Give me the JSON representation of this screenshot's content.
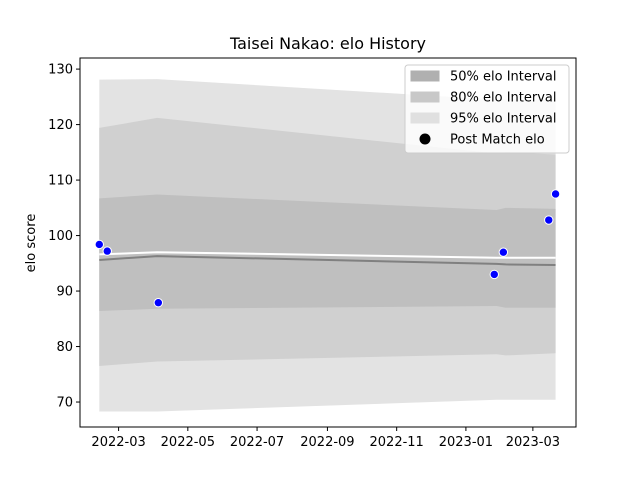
{
  "chart_data": {
    "type": "area",
    "title": "Taisei Nakao: elo History",
    "xlabel": "",
    "ylabel": "elo score",
    "xlim": [
      "2022-01-26",
      "2023-04-08"
    ],
    "ylim": [
      65.5,
      132.0
    ],
    "x_ticks": [
      "2022-03",
      "2022-05",
      "2022-07",
      "2022-09",
      "2022-11",
      "2023-01",
      "2023-03"
    ],
    "x_tick_dates": [
      "2022-03-01",
      "2022-05-01",
      "2022-07-01",
      "2022-09-01",
      "2022-11-01",
      "2023-01-01",
      "2023-03-01"
    ],
    "y_ticks": [
      70,
      80,
      90,
      100,
      110,
      120,
      130
    ],
    "grid": false,
    "legend_position": "top-right",
    "band_dates": [
      "2022-02-12",
      "2022-04-04",
      "2023-01-28",
      "2023-02-05",
      "2023-03-21"
    ],
    "series": [
      {
        "name": "95% elo Interval",
        "kind": "band",
        "color": "#e3e3e3",
        "lower": [
          68.3,
          68.3,
          70.4,
          70.4,
          70.4
        ],
        "upper": [
          128.1,
          128.2,
          124.5,
          124.5,
          124.5
        ]
      },
      {
        "name": "80% elo Interval",
        "kind": "band",
        "color": "#d0d0d0",
        "lower": [
          76.5,
          77.3,
          78.6,
          78.4,
          78.8
        ],
        "upper": [
          119.4,
          121.2,
          114.8,
          115.0,
          114.6
        ]
      },
      {
        "name": "50% elo Interval",
        "kind": "band",
        "color": "#bfbfbf",
        "lower": [
          86.4,
          86.8,
          87.3,
          87.0,
          87.0
        ],
        "upper": [
          106.7,
          107.4,
          104.6,
          105.0,
          104.8
        ]
      },
      {
        "name": "",
        "kind": "line",
        "color": "#ffffff",
        "values": [
          96.6,
          97.0,
          96.0,
          96.0,
          96.0
        ]
      },
      {
        "name": "",
        "kind": "line",
        "color": "#808080",
        "values": [
          95.6,
          96.3,
          94.9,
          94.8,
          94.7
        ]
      },
      {
        "name": "Post Match elo",
        "kind": "scatter",
        "color": "#0000ff",
        "edge_color": "#ffffff",
        "x": [
          "2022-02-12",
          "2022-02-19",
          "2022-04-05",
          "2023-01-26",
          "2023-02-03",
          "2023-03-15",
          "2023-03-21"
        ],
        "y": [
          98.4,
          97.2,
          87.9,
          93.0,
          97.0,
          102.8,
          107.5
        ]
      }
    ]
  }
}
